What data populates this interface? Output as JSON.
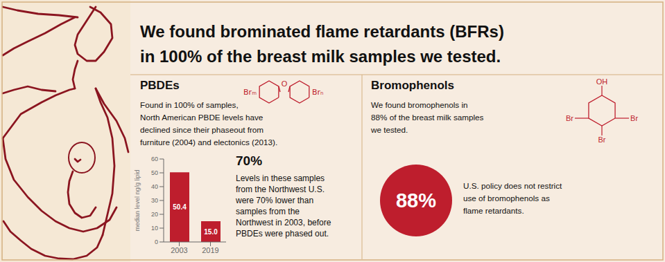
{
  "chart_data": {
    "type": "bar",
    "title": "We found brominated flame retardants (BFRs)\nin 100% of the breast milk samples we tested.",
    "categories": [
      "2003",
      "2019"
    ],
    "values": [
      50.4,
      15.0
    ],
    "value_labels": [
      "50.4",
      "15.0"
    ],
    "data_labels": true,
    "color": "#be1e2d",
    "ylabel": "median level ng/g lipid",
    "ylim": [
      0,
      60
    ],
    "yticks": [
      0,
      10,
      20,
      30,
      40,
      50,
      60
    ],
    "grid": false,
    "annotations": [
      "PBDEs",
      "Found in 100% of samples,\nNorth American PBDE levels have\ndeclined since their phaseout from\nfurniture (2004) and electonics (2013).",
      "70%",
      "Levels in these samples\nfrom the Northwest U.S.\nwere 70% lower than\nsamples from the\nNorthwest in 2003, before\nPBDEs were phased out.",
      "Bromophenols",
      "We found bromophenols in\n88% of the breast milk samples\nwe tested.",
      "88%",
      "U.S. policy does not restrict\nuse of bromophenols as\nflame retardants.",
      "O",
      "Brₘ",
      "Brₙ",
      "OH",
      "Br",
      "Br",
      "Br"
    ]
  }
}
